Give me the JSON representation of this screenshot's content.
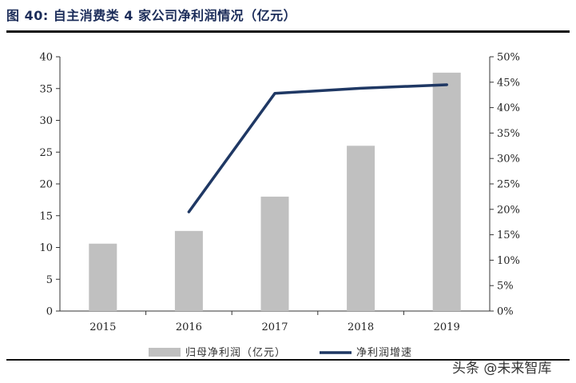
{
  "figure": {
    "title": "图 40:  自主消费类 4 家公司净利润情况（亿元）",
    "watermark": "头条 @未来智库"
  },
  "chart_data": {
    "type": "bar+line",
    "categories": [
      "2015",
      "2016",
      "2017",
      "2018",
      "2019"
    ],
    "series": [
      {
        "name": "归母净利润（亿元）",
        "type": "bar",
        "axis": "left",
        "color": "#c0c0c0",
        "values": [
          10.6,
          12.6,
          18.0,
          26.0,
          37.5
        ]
      },
      {
        "name": "净利润增速",
        "type": "line",
        "axis": "right",
        "color": "#1f3864",
        "values": [
          null,
          0.195,
          0.428,
          0.438,
          0.445
        ]
      }
    ],
    "y_left": {
      "min": 0,
      "max": 40,
      "step": 5,
      "ticks": [
        "0",
        "5",
        "10",
        "15",
        "20",
        "25",
        "30",
        "35",
        "40"
      ]
    },
    "y_right": {
      "min": 0,
      "max": 0.5,
      "step": 0.05,
      "ticks": [
        "0%",
        "5%",
        "10%",
        "15%",
        "20%",
        "25%",
        "30%",
        "35%",
        "40%",
        "45%",
        "50%"
      ]
    },
    "grid": false,
    "legend_position": "bottom"
  }
}
